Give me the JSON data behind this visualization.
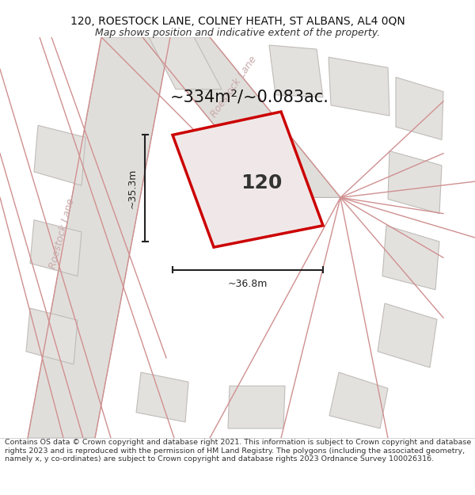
{
  "title_line1": "120, ROESTOCK LANE, COLNEY HEATH, ST ALBANS, AL4 0QN",
  "title_line2": "Map shows position and indicative extent of the property.",
  "footer_text": "Contains OS data © Crown copyright and database right 2021. This information is subject to Crown copyright and database rights 2023 and is reproduced with the permission of HM Land Registry. The polygons (including the associated geometry, namely x, y co-ordinates) are subject to Crown copyright and database rights 2023 Ordnance Survey 100026316.",
  "area_label": "~334m²/~0.083ac.",
  "width_label": "~36.8m",
  "height_label": "~35.3m",
  "property_number": "120",
  "bg_color": "#ffffff",
  "map_bg": "#f0eeeb",
  "road_fill": "#e0deda",
  "road_edge": "#b8b4b0",
  "plot_gray": "#e3e1de",
  "plot_edge": "#c0bcb8",
  "pink_line": "#d09090",
  "plot_color": "#cc0000",
  "plot_fill": "#f0e8e8",
  "dim_color": "#222222",
  "road_label_color": "#c8aaaa",
  "title_fontsize": 10,
  "subtitle_fontsize": 9,
  "footer_fontsize": 6.8,
  "area_fontsize": 15,
  "number_fontsize": 18,
  "dim_fontsize": 9,
  "road_label_fontsize": 9
}
